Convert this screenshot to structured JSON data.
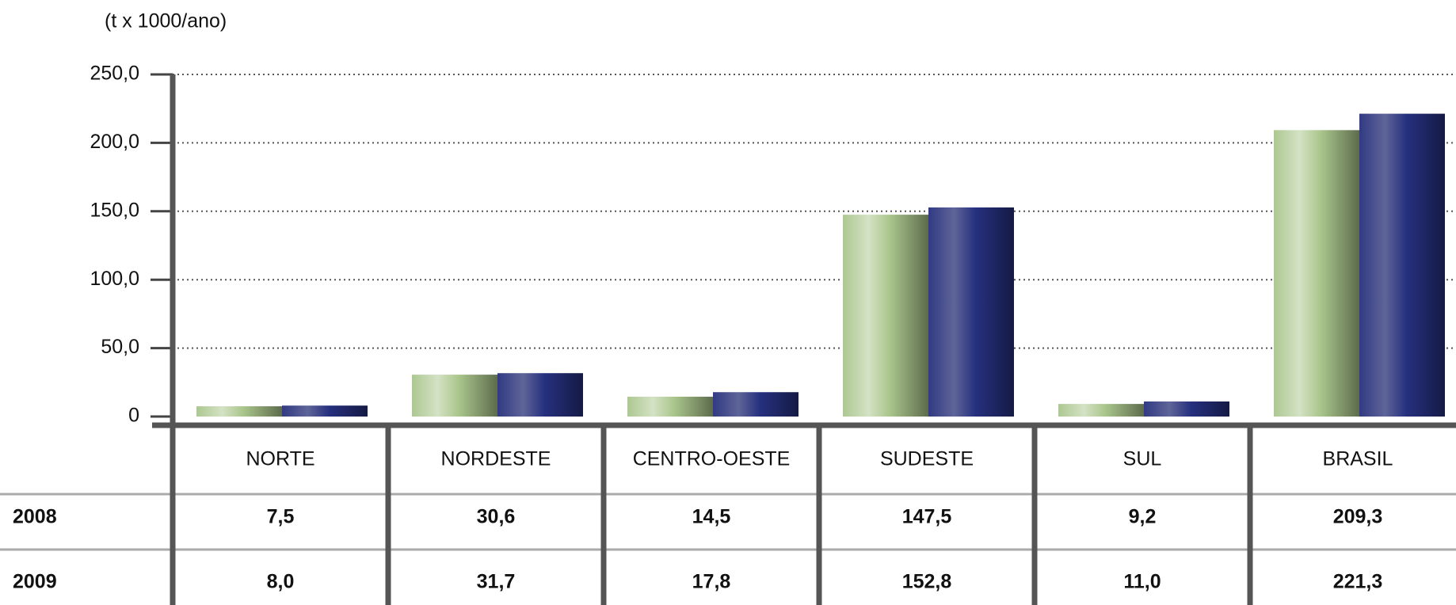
{
  "chart_data": {
    "type": "bar",
    "title": "(t x 1000/ano)",
    "categories": [
      "NORTE",
      "NORDESTE",
      "CENTRO-OESTE",
      "SUDESTE",
      "SUL",
      "BRASIL"
    ],
    "series": [
      {
        "name": "2008",
        "color": "#a9c58b",
        "values": [
          7.5,
          30.6,
          14.5,
          147.5,
          9.2,
          209.3
        ],
        "value_labels": [
          "7,5",
          "30,6",
          "14,5",
          "147,5",
          "9,2",
          "209,3"
        ]
      },
      {
        "name": "2009",
        "color": "#26307e",
        "values": [
          8.0,
          31.7,
          17.8,
          152.8,
          11.0,
          221.3
        ],
        "value_labels": [
          "8,0",
          "31,7",
          "17,8",
          "152,8",
          "11,0",
          "221,3"
        ]
      }
    ],
    "ylim": [
      0,
      250
    ],
    "yticks": [
      0,
      {
        "value": 50,
        "label": "50,0"
      },
      {
        "value": 100,
        "label": "100,0"
      },
      {
        "value": 150,
        "label": "150,0"
      },
      {
        "value": 200,
        "label": "200,0"
      },
      {
        "value": 250,
        "label": "250,0"
      }
    ],
    "grid": true
  }
}
